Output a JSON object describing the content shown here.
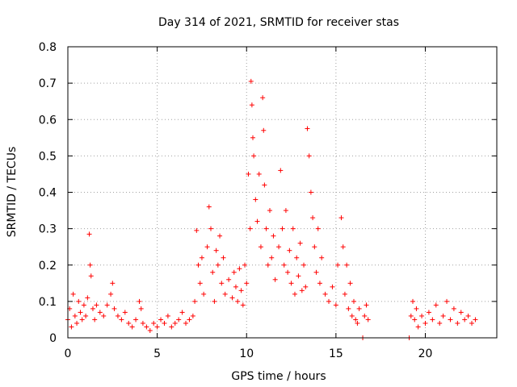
{
  "chart_data": {
    "type": "scatter",
    "title": "Day 314 of 2021, SRMTID for receiver stas",
    "xlabel": "GPS time / hours",
    "ylabel": "SRMTID / TECUs",
    "xlim": [
      0,
      24
    ],
    "ylim": [
      0,
      0.8
    ],
    "x_ticks": [
      0,
      5,
      10,
      15,
      20
    ],
    "y_ticks": [
      0,
      0.1,
      0.2,
      0.3,
      0.4,
      0.5,
      0.6,
      0.7,
      0.8
    ],
    "x_tick_labels": [
      "0",
      "5",
      "10",
      "15",
      "20"
    ],
    "y_tick_labels": [
      "0",
      "0.1",
      "0.2",
      "0.3",
      "0.4",
      "0.5",
      "0.6",
      "0.7",
      "0.8"
    ],
    "grid": true,
    "marker": "+",
    "color": "#ff0000",
    "series": [
      {
        "name": "SRMTID",
        "points": [
          [
            0.0,
            0.05
          ],
          [
            0.1,
            0.08
          ],
          [
            0.2,
            0.03
          ],
          [
            0.3,
            0.12
          ],
          [
            0.4,
            0.06
          ],
          [
            0.5,
            0.04
          ],
          [
            0.6,
            0.1
          ],
          [
            0.7,
            0.07
          ],
          [
            0.8,
            0.05
          ],
          [
            0.9,
            0.09
          ],
          [
            1.0,
            0.06
          ],
          [
            1.1,
            0.11
          ],
          [
            1.2,
            0.285
          ],
          [
            1.25,
            0.2
          ],
          [
            1.3,
            0.17
          ],
          [
            1.4,
            0.08
          ],
          [
            1.5,
            0.05
          ],
          [
            1.6,
            0.09
          ],
          [
            1.8,
            0.07
          ],
          [
            2.0,
            0.06
          ],
          [
            2.2,
            0.09
          ],
          [
            2.4,
            0.12
          ],
          [
            2.5,
            0.15
          ],
          [
            2.6,
            0.08
          ],
          [
            2.8,
            0.06
          ],
          [
            3.0,
            0.05
          ],
          [
            3.2,
            0.07
          ],
          [
            3.4,
            0.04
          ],
          [
            3.6,
            0.03
          ],
          [
            3.8,
            0.05
          ],
          [
            4.0,
            0.1
          ],
          [
            4.1,
            0.08
          ],
          [
            4.2,
            0.04
          ],
          [
            4.4,
            0.03
          ],
          [
            4.6,
            0.02
          ],
          [
            4.8,
            0.04
          ],
          [
            5.0,
            0.03
          ],
          [
            5.2,
            0.05
          ],
          [
            5.4,
            0.04
          ],
          [
            5.6,
            0.06
          ],
          [
            5.8,
            0.03
          ],
          [
            6.0,
            0.04
          ],
          [
            6.2,
            0.05
          ],
          [
            6.4,
            0.07
          ],
          [
            6.6,
            0.04
          ],
          [
            6.8,
            0.05
          ],
          [
            7.0,
            0.06
          ],
          [
            7.1,
            0.1
          ],
          [
            7.2,
            0.295
          ],
          [
            7.3,
            0.2
          ],
          [
            7.4,
            0.15
          ],
          [
            7.5,
            0.22
          ],
          [
            7.6,
            0.12
          ],
          [
            7.8,
            0.25
          ],
          [
            7.9,
            0.36
          ],
          [
            8.0,
            0.3
          ],
          [
            8.1,
            0.18
          ],
          [
            8.2,
            0.1
          ],
          [
            8.3,
            0.24
          ],
          [
            8.4,
            0.2
          ],
          [
            8.5,
            0.28
          ],
          [
            8.6,
            0.15
          ],
          [
            8.7,
            0.22
          ],
          [
            8.8,
            0.12
          ],
          [
            9.0,
            0.16
          ],
          [
            9.2,
            0.11
          ],
          [
            9.3,
            0.18
          ],
          [
            9.4,
            0.14
          ],
          [
            9.5,
            0.1
          ],
          [
            9.6,
            0.19
          ],
          [
            9.7,
            0.13
          ],
          [
            9.8,
            0.09
          ],
          [
            9.9,
            0.2
          ],
          [
            10.0,
            0.15
          ],
          [
            10.1,
            0.45
          ],
          [
            10.2,
            0.3
          ],
          [
            10.25,
            0.705
          ],
          [
            10.3,
            0.64
          ],
          [
            10.35,
            0.55
          ],
          [
            10.4,
            0.5
          ],
          [
            10.5,
            0.38
          ],
          [
            10.6,
            0.32
          ],
          [
            10.7,
            0.45
          ],
          [
            10.8,
            0.25
          ],
          [
            10.9,
            0.66
          ],
          [
            10.95,
            0.57
          ],
          [
            11.0,
            0.42
          ],
          [
            11.1,
            0.3
          ],
          [
            11.2,
            0.2
          ],
          [
            11.3,
            0.35
          ],
          [
            11.4,
            0.22
          ],
          [
            11.5,
            0.28
          ],
          [
            11.6,
            0.16
          ],
          [
            11.8,
            0.25
          ],
          [
            11.9,
            0.46
          ],
          [
            12.0,
            0.3
          ],
          [
            12.1,
            0.2
          ],
          [
            12.2,
            0.35
          ],
          [
            12.3,
            0.18
          ],
          [
            12.4,
            0.24
          ],
          [
            12.5,
            0.15
          ],
          [
            12.6,
            0.3
          ],
          [
            12.7,
            0.12
          ],
          [
            12.8,
            0.22
          ],
          [
            12.9,
            0.17
          ],
          [
            13.0,
            0.26
          ],
          [
            13.1,
            0.13
          ],
          [
            13.2,
            0.2
          ],
          [
            13.3,
            0.14
          ],
          [
            13.4,
            0.575
          ],
          [
            13.5,
            0.5
          ],
          [
            13.6,
            0.4
          ],
          [
            13.7,
            0.33
          ],
          [
            13.8,
            0.25
          ],
          [
            13.9,
            0.18
          ],
          [
            14.0,
            0.3
          ],
          [
            14.1,
            0.15
          ],
          [
            14.2,
            0.22
          ],
          [
            14.4,
            0.12
          ],
          [
            14.6,
            0.1
          ],
          [
            14.8,
            0.14
          ],
          [
            15.0,
            0.09
          ],
          [
            15.1,
            0.2
          ],
          [
            15.3,
            0.33
          ],
          [
            15.4,
            0.25
          ],
          [
            15.5,
            0.12
          ],
          [
            15.6,
            0.2
          ],
          [
            15.7,
            0.08
          ],
          [
            15.8,
            0.15
          ],
          [
            15.9,
            0.06
          ],
          [
            16.0,
            0.1
          ],
          [
            16.1,
            0.05
          ],
          [
            16.2,
            0.04
          ],
          [
            16.3,
            0.08
          ],
          [
            16.5,
            0.0
          ],
          [
            16.6,
            0.06
          ],
          [
            16.7,
            0.09
          ],
          [
            16.8,
            0.05
          ],
          [
            19.1,
            0.0
          ],
          [
            19.2,
            0.06
          ],
          [
            19.3,
            0.1
          ],
          [
            19.4,
            0.05
          ],
          [
            19.5,
            0.08
          ],
          [
            19.6,
            0.03
          ],
          [
            19.8,
            0.06
          ],
          [
            20.0,
            0.04
          ],
          [
            20.2,
            0.07
          ],
          [
            20.4,
            0.05
          ],
          [
            20.6,
            0.09
          ],
          [
            20.8,
            0.04
          ],
          [
            21.0,
            0.06
          ],
          [
            21.2,
            0.1
          ],
          [
            21.4,
            0.05
          ],
          [
            21.6,
            0.08
          ],
          [
            21.8,
            0.04
          ],
          [
            22.0,
            0.07
          ],
          [
            22.2,
            0.05
          ],
          [
            22.4,
            0.06
          ],
          [
            22.6,
            0.04
          ],
          [
            22.8,
            0.05
          ]
        ]
      }
    ]
  }
}
